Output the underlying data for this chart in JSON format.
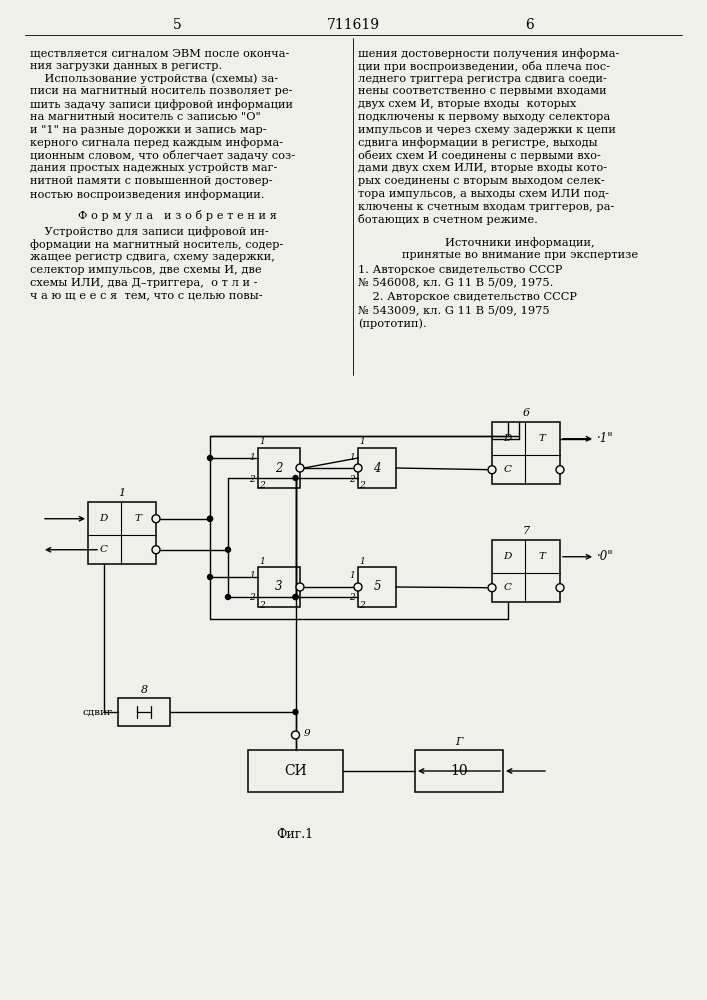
{
  "page_number_left": "5",
  "page_number_center": "711619",
  "page_number_right": "6",
  "text_left": [
    "ществляется сигналом ЭВМ после оконча-",
    "ния загрузки данных в регистр.",
    "    Использование устройства (схемы) за-",
    "писи на магнитный носитель позволяет ре-",
    "шить задачу записи цифровой информации",
    "на магнитный носитель с записью \"О\"",
    "и \"1\" на разные дорожки и запись мар-",
    "керного сигнала перед каждым информа-",
    "ционным словом, что облегчает задачу соз-",
    "дания простых надежных устройств маг-",
    "нитной памяти с повышенной достовер-",
    "ностью воспроизведения информации."
  ],
  "formula_header": "Ф о р м у л а   и з о б р е т е н и я",
  "formula_text": [
    "    Устройство для записи цифровой ин-",
    "формации на магнитный носитель, содер-",
    "жащее регистр сдвига, схему задержки,",
    "селектор импульсов, две схемы И, две",
    "схемы ИЛИ, два Д–триггера,  о т л и -",
    "ч а ю щ е е с я  тем, что с целью повы-"
  ],
  "text_right": [
    "шения достоверности получения информа-",
    "ции при воспроизведении, оба плеча пос-",
    "леднего триггера регистра сдвига соеди-",
    "нены соответственно с первыми входами",
    "двух схем И, вторые входы  которых",
    "подключены к первому выходу селектора",
    "импульсов и через схему задержки к цепи",
    "сдвига информации в регистре, выходы",
    "обеих схем И соединены с первыми вхо-",
    "дами двух схем ИЛИ, вторые входы кото-",
    "рых соединены с вторым выходом селек-",
    "тора импульсов, а выходы схем ИЛИ под-",
    "ключены к счетным входам триггеров, ра-",
    "ботающих в счетном режиме."
  ],
  "sources_header": "Источники информации,",
  "sources_subheader": "принятые во внимание при экспертизе",
  "source1": "1. Авторское свидетельство СССР",
  "source1b": "№ 546008, кл. G 11 В 5/09, 1975.",
  "source2": "    2. Авторское свидетельство СССР",
  "source2b": "№ 543009, кл. G 11 В 5/09, 1975",
  "source2c": "(прототип).",
  "fig_label": "Фиг.1",
  "bg_color": "#f0f0eb"
}
